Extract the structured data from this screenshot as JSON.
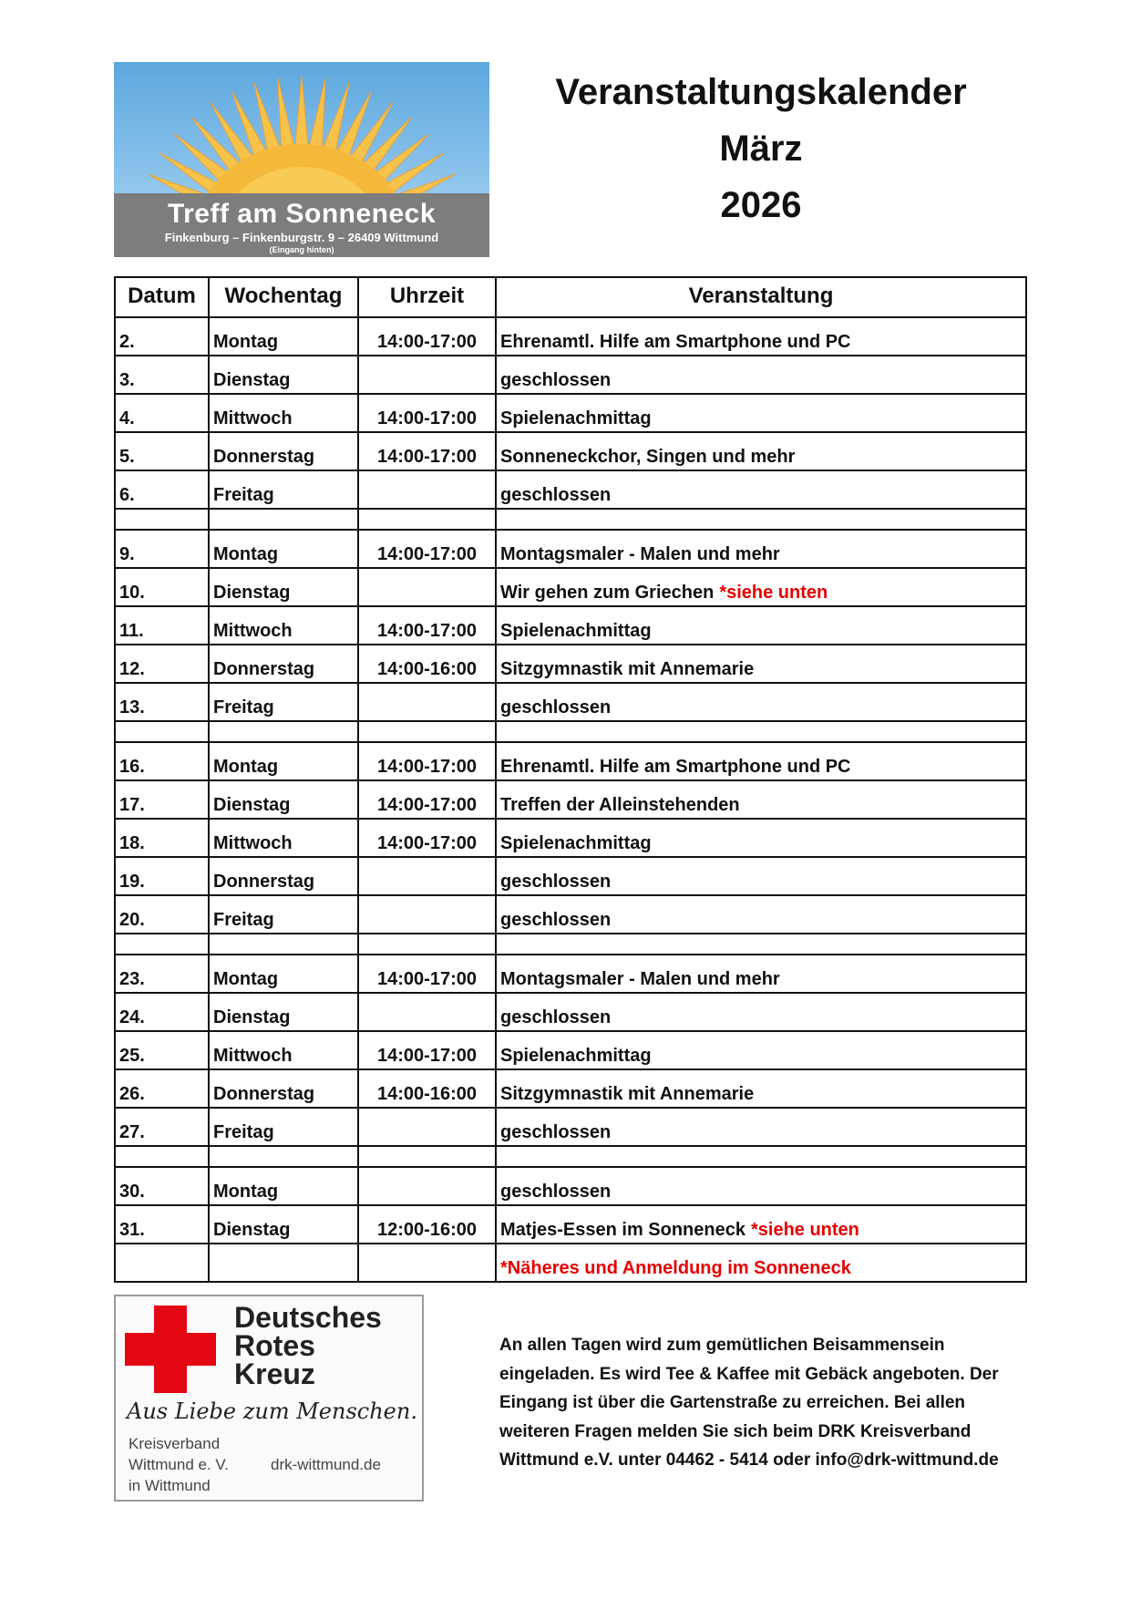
{
  "logo": {
    "name": "Treff am Sonneneck",
    "address": "Finkenburg – Finkenburgstr. 9 – 26409 Wittmund",
    "entrance": "(Eingang hinten)"
  },
  "header": {
    "title": "Veranstaltungskalender",
    "month": "März",
    "year": "2026"
  },
  "table": {
    "columns": [
      "Datum",
      "Wochentag",
      "Uhrzeit",
      "Veranstaltung"
    ],
    "rows": [
      {
        "date": "2.",
        "day": "Montag",
        "time": "14:00-17:00",
        "event": "Ehrenamtl. Hilfe am Smartphone und PC",
        "note": ""
      },
      {
        "date": "3.",
        "day": "Dienstag",
        "time": "",
        "event": "geschlossen",
        "note": ""
      },
      {
        "date": "4.",
        "day": "Mittwoch",
        "time": "14:00-17:00",
        "event": "Spielenachmittag",
        "note": ""
      },
      {
        "date": "5.",
        "day": "Donnerstag",
        "time": "14:00-17:00",
        "event": "Sonneneckchor, Singen und mehr",
        "note": ""
      },
      {
        "date": "6.",
        "day": "Freitag",
        "time": "",
        "event": "geschlossen",
        "note": ""
      },
      {
        "spacer": true
      },
      {
        "date": "9.",
        "day": "Montag",
        "time": "14:00-17:00",
        "event": "Montagsmaler - Malen und mehr",
        "note": ""
      },
      {
        "date": "10.",
        "day": "Dienstag",
        "time": "",
        "event": "Wir gehen zum Griechen",
        "note": "*siehe unten"
      },
      {
        "date": "11.",
        "day": "Mittwoch",
        "time": "14:00-17:00",
        "event": "Spielenachmittag",
        "note": ""
      },
      {
        "date": "12.",
        "day": "Donnerstag",
        "time": "14:00-16:00",
        "event": "Sitzgymnastik mit Annemarie",
        "note": ""
      },
      {
        "date": "13.",
        "day": "Freitag",
        "time": "",
        "event": "geschlossen",
        "note": ""
      },
      {
        "spacer": true
      },
      {
        "date": "16.",
        "day": "Montag",
        "time": "14:00-17:00",
        "event": "Ehrenamtl. Hilfe am Smartphone und PC",
        "note": ""
      },
      {
        "date": "17.",
        "day": "Dienstag",
        "time": "14:00-17:00",
        "event": "Treffen der Alleinstehenden",
        "note": ""
      },
      {
        "date": "18.",
        "day": "Mittwoch",
        "time": "14:00-17:00",
        "event": "Spielenachmittag",
        "note": ""
      },
      {
        "date": "19.",
        "day": "Donnerstag",
        "time": "",
        "event": "geschlossen",
        "note": ""
      },
      {
        "date": "20.",
        "day": "Freitag",
        "time": "",
        "event": "geschlossen",
        "note": ""
      },
      {
        "spacer": true
      },
      {
        "date": "23.",
        "day": "Montag",
        "time": "14:00-17:00",
        "event": "Montagsmaler - Malen und mehr",
        "note": ""
      },
      {
        "date": "24.",
        "day": "Dienstag",
        "time": "",
        "event": "geschlossen",
        "note": ""
      },
      {
        "date": "25.",
        "day": "Mittwoch",
        "time": "14:00-17:00",
        "event": "Spielenachmittag",
        "note": ""
      },
      {
        "date": "26.",
        "day": "Donnerstag",
        "time": "14:00-16:00",
        "event": "Sitzgymnastik mit Annemarie",
        "note": ""
      },
      {
        "date": "27.",
        "day": "Freitag",
        "time": "",
        "event": "geschlossen",
        "note": ""
      },
      {
        "spacer": true
      },
      {
        "date": "30.",
        "day": "Montag",
        "time": "",
        "event": "geschlossen",
        "note": ""
      },
      {
        "date": "31.",
        "day": "Dienstag",
        "time": "12:00-16:00",
        "event": "Matjes-Essen im Sonneneck",
        "note": "*siehe unten"
      },
      {
        "date": "",
        "day": "",
        "time": "",
        "event": "",
        "note": "*Näheres und Anmeldung im Sonneneck"
      }
    ]
  },
  "drk": {
    "name_lines": [
      "Deutsches",
      "Rotes",
      "Kreuz"
    ],
    "slogan": "Aus Liebe zum Menschen.",
    "org_lines": [
      "Kreisverband",
      "Wittmund e. V.",
      "in Wittmund"
    ],
    "website": "drk-wittmund.de"
  },
  "info_text": "An allen Tagen wird zum gemütlichen Beisammensein eingeladen. Es wird Tee & Kaffee mit Gebäck angeboten. Der Eingang ist über die Gartenstraße zu erreichen. Bei allen weiteren Fragen melden Sie sich beim DRK Kreisverband Wittmund e.V. unter 04462 - 5414 oder info@drk-wittmund.de",
  "colors": {
    "accent_red": "#e50000",
    "drk_red": "#e30613"
  }
}
